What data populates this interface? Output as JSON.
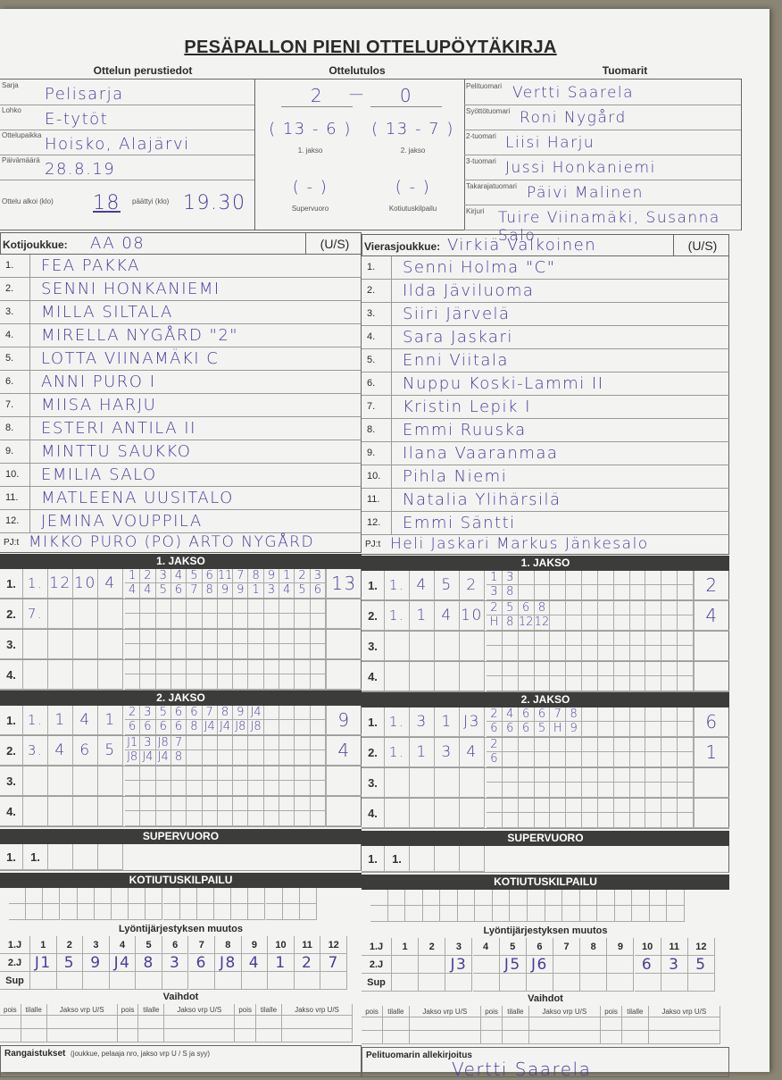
{
  "title": "PESÄPALLON PIENI OTTELUPÖYTÄKIRJA",
  "sections": {
    "basic": "Ottelun perustiedot",
    "result": "Ottelutulos",
    "referees": "Tuomarit"
  },
  "basic_info": [
    {
      "label": "Sarja",
      "value": "Pelisarja"
    },
    {
      "label": "Lohko",
      "value": "E-tytöt"
    },
    {
      "label": "Ottelupaikka",
      "value": "Hoisko, Alajärvi"
    },
    {
      "label": "Päivämäärä",
      "value": "28.8.19"
    }
  ],
  "time": {
    "start_label": "Ottelu alkoi (klo)",
    "start": "18",
    "end_label": "päättyi (klo)",
    "end": "19.30"
  },
  "result": {
    "home": "2",
    "away": "0",
    "dash": "—",
    "periods": [
      {
        "label": "1. jakso",
        "text": "( 13 - 6 )"
      },
      {
        "label": "2. jakso",
        "text": "( 13 - 7 )"
      },
      {
        "label": "Supervuoro",
        "text": "(   -   )"
      },
      {
        "label": "Kotiutuskilpailu",
        "text": "(   -   )"
      }
    ]
  },
  "referees": [
    {
      "label": "Pelituomari",
      "value": "Vertti Saarela"
    },
    {
      "label": "Syöttötuomari",
      "value": "Roni Nygård"
    },
    {
      "label": "2-tuomari",
      "value": "Liisi Harju"
    },
    {
      "label": "3-tuomari",
      "value": "Jussi Honkaniemi"
    },
    {
      "label": "Takarajatuomari",
      "value": "Päivi Malinen"
    },
    {
      "label": "Kirjuri",
      "value": "Tuire Viinamäki, Susanna Salo"
    }
  ],
  "teams": [
    {
      "label": "Kotijoukkue:",
      "name": "AA 08",
      "us": "(U/S)",
      "players": [
        "FEA PAKKA",
        "SENNI HONKANIEMI",
        "MILLA SILTALA",
        "MIRELLA NYGÅRD \"2\"",
        "LOTTA VIINAMÄKI C",
        "ANNI PURO I",
        "MIISA HARJU",
        "ESTERI ANTILA II",
        "MINTTU SAUKKO",
        "EMILIA SALO",
        "MATLEENA UUSITALO",
        "JEMINA VOUPPILA"
      ],
      "pj_label": "PJ:t",
      "pj": "MIKKO PURO (PO) ARTO NYGÅRD",
      "innings": [
        {
          "bar": "1. JAKSO",
          "rows": [
            {
              "no": "1.",
              "cells": [
                "1.",
                "12",
                "10",
                "4"
              ],
              "top": [
                "1",
                "2",
                "3",
                "4",
                "5",
                "6",
                "11",
                "7",
                "8",
                "9",
                "1",
                "2",
                "3"
              ],
              "bottom": [
                "4",
                "4",
                "5",
                "6",
                "7",
                "8",
                "9",
                "9",
                "1",
                "3",
                "4",
                "5",
                "6"
              ],
              "total": "13"
            },
            {
              "no": "2.",
              "cells": [
                "7.",
                "",
                "",
                ""
              ],
              "top": [],
              "bottom": [],
              "total": ""
            },
            {
              "no": "3.",
              "cells": [
                "",
                "",
                "",
                ""
              ],
              "top": [],
              "bottom": [],
              "total": ""
            },
            {
              "no": "4.",
              "cells": [
                "",
                "",
                "",
                ""
              ],
              "top": [],
              "bottom": [],
              "total": ""
            }
          ]
        },
        {
          "bar": "2. JAKSO",
          "rows": [
            {
              "no": "1.",
              "cells": [
                "1.",
                "1",
                "4",
                "1"
              ],
              "top": [
                "2",
                "3",
                "5",
                "6",
                "6",
                "7",
                "8",
                "9",
                "J4"
              ],
              "bottom": [
                "6",
                "6",
                "6",
                "6",
                "8",
                "J4",
                "J4",
                "J8",
                "J8"
              ],
              "total": "9"
            },
            {
              "no": "2.",
              "cells": [
                "3.",
                "4",
                "6",
                "5"
              ],
              "top": [
                "J1",
                "3",
                "J8",
                "7"
              ],
              "bottom": [
                "J8",
                "J4",
                "J4",
                "8"
              ],
              "total": "4"
            },
            {
              "no": "3.",
              "cells": [
                "",
                "",
                "",
                ""
              ],
              "top": [],
              "bottom": [],
              "total": ""
            },
            {
              "no": "4.",
              "cells": [
                "",
                "",
                "",
                ""
              ],
              "top": [],
              "bottom": [],
              "total": ""
            }
          ]
        }
      ],
      "super": {
        "bar": "SUPERVUORO",
        "no": "1.",
        "cell": "1."
      },
      "home_run": {
        "bar": "KOTIUTUSKILPAILU"
      },
      "order": {
        "title": "Lyöntijärjestyksen muutos",
        "rows": [
          "1.J",
          "2.J",
          "Sup"
        ],
        "header": [
          "1",
          "2",
          "3",
          "4",
          "5",
          "6",
          "7",
          "8",
          "9",
          "10",
          "11",
          "12"
        ],
        "values": [
          "J1",
          "5",
          "9",
          "J4",
          "8",
          "3",
          "6",
          "J8",
          "4",
          "1",
          "2",
          "7"
        ]
      },
      "subs": {
        "title": "Vaihdot",
        "cols": [
          "pois",
          "tilalle",
          "Jakso vrp U/S",
          "pois",
          "tilalle",
          "Jakso vrp U/S",
          "pois",
          "tilalle",
          "Jakso vrp U/S"
        ]
      },
      "footer": {
        "label": "Rangaistukset",
        "note": "(joukkue, pelaaja nro, jakso vrp U / S ja syy)",
        "value": ""
      }
    },
    {
      "label": "Vierasjoukkue:",
      "name": "Virkiä Valkoinen",
      "us": "(U/S)",
      "players": [
        "Senni Holma \"C\"",
        "Ilda Jäviluoma",
        "Siiri Järvelä",
        "Sara Jaskari",
        "Enni Viitala",
        "Nuppu Koski-Lammi II",
        "Kristin Lepik I",
        "Emmi Ruuska",
        "Ilana Vaaranmaa",
        "Pihla Niemi",
        "Natalia Ylihärsilä",
        "Emmi Säntti"
      ],
      "pj_label": "PJ:t",
      "pj": "Heli Jaskari  Markus Jänkesalo",
      "innings": [
        {
          "bar": "1. JAKSO",
          "rows": [
            {
              "no": "1.",
              "cells": [
                "1.",
                "4",
                "5",
                "2"
              ],
              "top": [
                "1",
                "3"
              ],
              "bottom": [
                "3",
                "8"
              ],
              "total": "2"
            },
            {
              "no": "2.",
              "cells": [
                "1.",
                "1",
                "4",
                "10"
              ],
              "top": [
                "2",
                "5",
                "6",
                "8"
              ],
              "bottom": [
                "H",
                "8",
                "12",
                "12"
              ],
              "total": "4"
            },
            {
              "no": "3.",
              "cells": [
                "",
                "",
                "",
                ""
              ],
              "top": [],
              "bottom": [],
              "total": ""
            },
            {
              "no": "4.",
              "cells": [
                "",
                "",
                "",
                ""
              ],
              "top": [],
              "bottom": [],
              "total": ""
            }
          ]
        },
        {
          "bar": "2. JAKSO",
          "rows": [
            {
              "no": "1.",
              "cells": [
                "1.",
                "3",
                "1",
                "J3"
              ],
              "top": [
                "2",
                "4",
                "6",
                "6",
                "7",
                "8"
              ],
              "bottom": [
                "6",
                "6",
                "6",
                "5",
                "H",
                "9"
              ],
              "total": "6"
            },
            {
              "no": "2.",
              "cells": [
                "1.",
                "1",
                "3",
                "4"
              ],
              "top": [
                "2"
              ],
              "bottom": [
                "6"
              ],
              "total": "1"
            },
            {
              "no": "3.",
              "cells": [
                "",
                "",
                "",
                ""
              ],
              "top": [],
              "bottom": [],
              "total": ""
            },
            {
              "no": "4.",
              "cells": [
                "",
                "",
                "",
                ""
              ],
              "top": [],
              "bottom": [],
              "total": ""
            }
          ]
        }
      ],
      "super": {
        "bar": "SUPERVUORO",
        "no": "1.",
        "cell": "1."
      },
      "home_run": {
        "bar": "KOTIUTUSKILPAILU"
      },
      "order": {
        "title": "Lyöntijärjestyksen muutos",
        "rows": [
          "1.J",
          "2.J",
          "Sup"
        ],
        "header": [
          "1",
          "2",
          "3",
          "4",
          "5",
          "6",
          "7",
          "8",
          "9",
          "10",
          "11",
          "12"
        ],
        "values": [
          "",
          "",
          "J3",
          "",
          "J5",
          "J6",
          "",
          "",
          "",
          "6",
          "3",
          "5"
        ]
      },
      "subs": {
        "title": "Vaihdot",
        "cols": [
          "pois",
          "tilalle",
          "Jakso vrp U/S",
          "pois",
          "tilalle",
          "Jakso vrp U/S",
          "pois",
          "tilalle",
          "Jakso vrp U/S"
        ]
      },
      "footer": {
        "label": "Pelituomarin allekirjoitus",
        "note": "",
        "value": "Vertti Saarela"
      }
    }
  ]
}
